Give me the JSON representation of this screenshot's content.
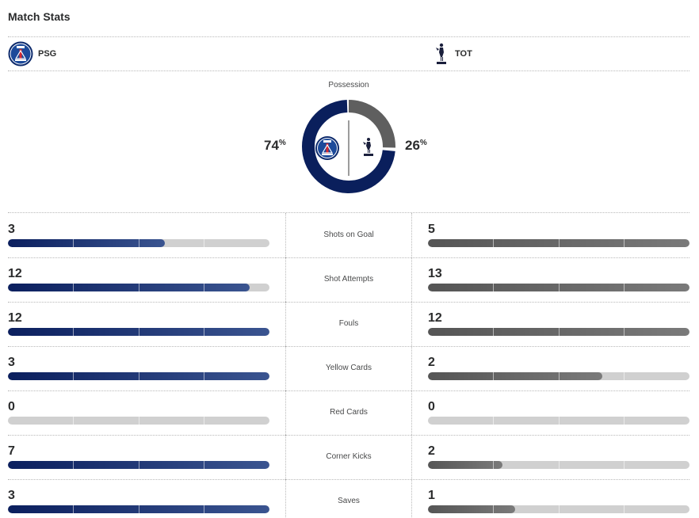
{
  "header": {
    "title": "Match Stats"
  },
  "teams": {
    "home": {
      "abbr": "PSG",
      "logo_icon": "psg-crest-icon",
      "color": "#0a1f5c"
    },
    "away": {
      "abbr": "TOT",
      "logo_icon": "tottenham-cockerel-icon",
      "color": "#5f5f5f"
    }
  },
  "possession": {
    "label": "Possession",
    "home_value": "74",
    "away_value": "26",
    "unit": "%",
    "home_fraction": 0.74,
    "away_fraction": 0.26
  },
  "stats": [
    {
      "label": "Shots on Goal",
      "home": "3",
      "away": "5",
      "home_fill": 0.6,
      "away_fill": 1.0
    },
    {
      "label": "Shot Attempts",
      "home": "12",
      "away": "13",
      "home_fill": 0.923,
      "away_fill": 1.0
    },
    {
      "label": "Fouls",
      "home": "12",
      "away": "12",
      "home_fill": 1.0,
      "away_fill": 1.0
    },
    {
      "label": "Yellow Cards",
      "home": "3",
      "away": "2",
      "home_fill": 1.0,
      "away_fill": 0.667
    },
    {
      "label": "Red Cards",
      "home": "0",
      "away": "0",
      "home_fill": 0,
      "away_fill": 0
    },
    {
      "label": "Corner Kicks",
      "home": "7",
      "away": "2",
      "home_fill": 1.0,
      "away_fill": 0.286
    },
    {
      "label": "Saves",
      "home": "3",
      "away": "1",
      "home_fill": 1.0,
      "away_fill": 0.333
    }
  ],
  "colors": {
    "home_bar_start": "#0b1f5e",
    "home_bar_end": "#3a5490",
    "away_bar_start": "#555555",
    "away_bar_end": "#7a7a7a",
    "track": "#d0d0d0"
  }
}
